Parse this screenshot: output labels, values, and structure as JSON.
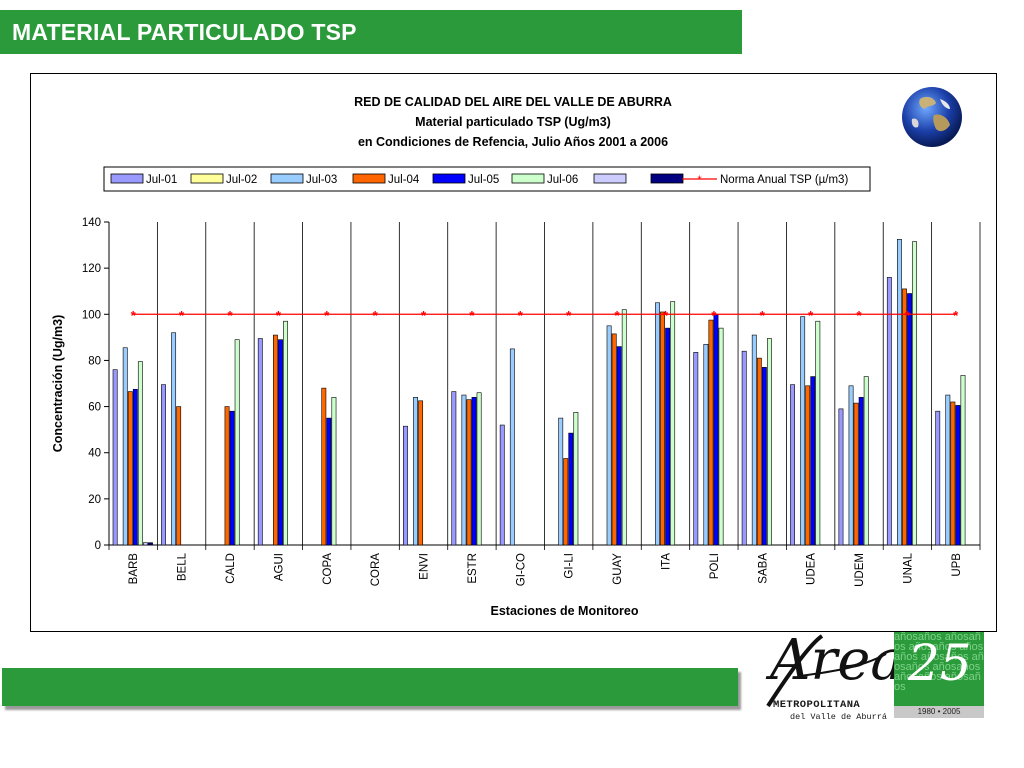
{
  "slide": {
    "title": "MATERIAL PARTICULADO TSP",
    "logo": {
      "script": "Area",
      "name": "METROPOLITANA",
      "sub": "del Valle de Aburrá",
      "badge_number": "25",
      "badge_words": "añosaños añosaños añosaños añosaños añosaños añosaños añosaños añosaños añosaños",
      "badge_years": "1980 • 2005"
    }
  },
  "chart_data": {
    "type": "bar",
    "title_lines": [
      "RED DE CALIDAD DEL AIRE DEL VALLE DE ABURRA",
      "Material particulado TSP (Ug/m3)",
      "en Condiciones de Refencia, Julio Años 2001 a 2006"
    ],
    "xlabel": "Estaciones de Monitoreo",
    "ylabel": "Concentración (Ug/m3)",
    "ylim": [
      0,
      140
    ],
    "yticks": [
      0,
      20,
      40,
      60,
      80,
      100,
      120,
      140
    ],
    "categories": [
      "BARB",
      "BELL",
      "CALD",
      "AGUI",
      "COPA",
      "CORA",
      "ENVI",
      "ESTR",
      "GI-CO",
      "GI-LI",
      "GUAY",
      "ITA",
      "POLI",
      "SABA",
      "UDEA",
      "UDEM",
      "UNAL",
      "UPB"
    ],
    "series": [
      {
        "name": "Jul-01",
        "color": "#9999ff",
        "values": [
          76,
          69.5,
          null,
          89.5,
          null,
          null,
          51.5,
          66.5,
          52,
          null,
          null,
          null,
          83.5,
          84,
          69.5,
          59,
          116,
          58
        ]
      },
      {
        "name": "Jul-02",
        "color": "#ffff99",
        "values": [
          null,
          null,
          null,
          null,
          null,
          null,
          null,
          null,
          null,
          null,
          null,
          null,
          null,
          null,
          null,
          null,
          null,
          null
        ]
      },
      {
        "name": "Jul-03",
        "color": "#99ccff",
        "values": [
          85.5,
          92,
          null,
          null,
          null,
          null,
          64,
          65,
          85,
          55,
          95,
          105,
          87,
          91,
          99,
          69,
          132.5,
          65
        ]
      },
      {
        "name": "Jul-04",
        "color": "#ff6600",
        "values": [
          66.5,
          60,
          60,
          91,
          68,
          null,
          62.5,
          63,
          null,
          37.5,
          91.5,
          101,
          97.5,
          81,
          69,
          61.5,
          111,
          62
        ]
      },
      {
        "name": "Jul-05",
        "color": "#0000ff",
        "values": [
          67.5,
          null,
          58,
          89,
          55,
          null,
          null,
          64,
          null,
          48.5,
          86,
          94,
          100,
          77,
          73,
          64,
          109,
          60.5
        ]
      },
      {
        "name": "Jul-06",
        "color": "#ccffcc",
        "values": [
          79.5,
          null,
          89,
          97,
          64,
          null,
          null,
          66,
          null,
          57.5,
          102,
          105.5,
          94,
          89.5,
          97,
          73,
          131.5,
          73.5
        ]
      },
      {
        "name": "",
        "color": "#ccccff",
        "values": [
          1,
          null,
          null,
          null,
          null,
          null,
          null,
          null,
          null,
          null,
          null,
          null,
          null,
          null,
          null,
          null,
          null,
          null
        ]
      },
      {
        "name": "",
        "color": "#000080",
        "values": [
          1,
          null,
          null,
          null,
          null,
          null,
          null,
          null,
          null,
          null,
          null,
          null,
          null,
          null,
          null,
          null,
          null,
          null
        ]
      }
    ],
    "reference_line": {
      "name": "Norma Anual TSP (µ/m3)",
      "value": 100,
      "color": "#ff0000",
      "marker": "asterisk"
    },
    "legend_position": "top"
  }
}
